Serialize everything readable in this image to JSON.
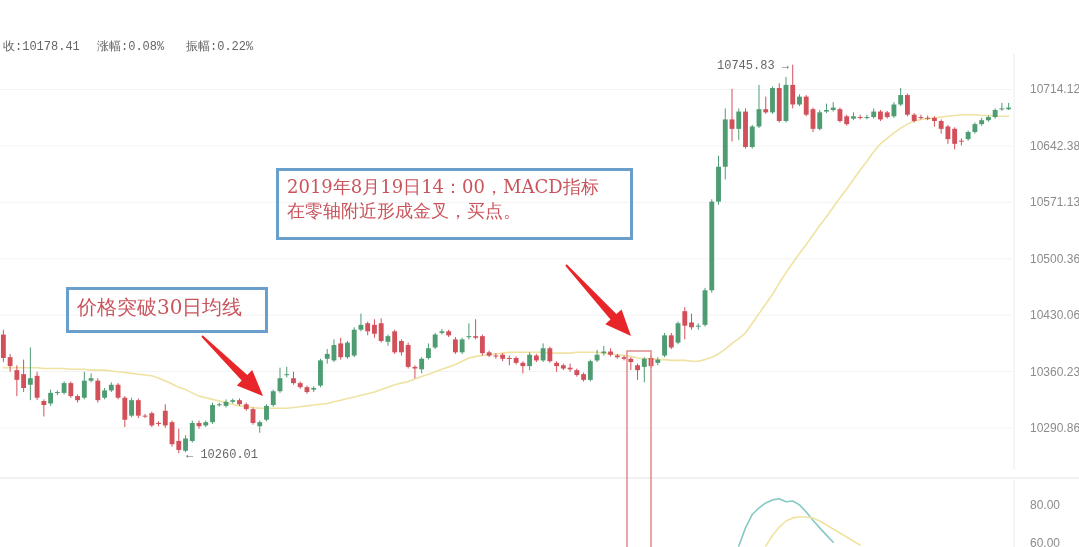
{
  "chart_data": [
    {
      "type": "candlestick",
      "log": true,
      "grid": "y",
      "ylim": [
        10240,
        10760
      ],
      "yticks": [
        10290.86,
        10360.23,
        10430.06,
        10500.36,
        10571.13,
        10642.38,
        10714.12
      ],
      "annotations": [
        "收:10178.41",
        "涨幅:0.08%",
        "振幅:0.22%",
        "价格突破30日均线",
        "2019年8月19日14：00，MACD指标在零轴附近形成金叉，买点。",
        "10745.83 →",
        "← 10260.01"
      ],
      "categories": [
        null,
        null,
        null,
        null,
        null,
        null,
        null,
        null,
        null,
        null,
        null,
        null,
        null,
        null,
        null,
        null,
        null,
        null,
        null,
        null,
        null,
        null,
        null,
        null,
        null,
        null,
        null,
        null,
        null,
        null,
        null,
        null,
        null,
        null,
        null,
        null,
        null,
        null,
        null,
        null,
        null,
        null,
        null,
        null,
        null,
        null,
        null,
        null,
        null,
        null,
        null,
        null,
        null,
        null,
        null,
        null,
        null,
        null,
        null,
        null,
        null,
        null,
        null,
        null,
        null,
        null,
        null,
        null,
        null,
        null,
        null,
        null,
        null,
        null,
        null,
        null,
        null,
        null,
        null,
        null,
        null,
        null,
        null,
        null,
        null,
        null,
        null,
        null,
        null,
        null,
        null,
        null,
        null,
        null,
        null,
        null,
        null,
        null,
        null,
        null,
        null,
        null,
        null,
        null,
        null,
        null,
        null,
        null,
        null,
        null,
        null,
        null,
        null,
        null,
        null,
        null,
        null,
        null,
        null,
        null,
        null,
        null,
        null,
        null,
        null,
        null,
        null,
        null,
        null,
        null,
        null,
        null,
        null,
        null,
        null,
        null,
        null,
        null,
        null,
        null,
        null,
        null,
        null,
        null,
        null,
        null,
        null,
        null,
        null,
        null
      ],
      "ohlc": [
        [
          10406,
          10412,
          10372,
          10377
        ],
        [
          10378,
          10382,
          10360,
          10367
        ],
        [
          10362,
          10368,
          10330,
          10350
        ],
        [
          10357,
          10375,
          10335,
          10340
        ],
        [
          10344,
          10390,
          10325,
          10352
        ],
        [
          10355,
          10360,
          10325,
          10328
        ],
        [
          10324,
          10326,
          10305,
          10319
        ],
        [
          10321,
          10338,
          10318,
          10334
        ],
        [
          10334,
          10337,
          10331,
          10335
        ],
        [
          10334,
          10348,
          10332,
          10346
        ],
        [
          10346,
          10348,
          10328,
          10330
        ],
        [
          10330,
          10332,
          10322,
          10325
        ],
        [
          10328,
          10360,
          10326,
          10349
        ],
        [
          10349,
          10358,
          10347,
          10352
        ],
        [
          10349,
          10352,
          10322,
          10325
        ],
        [
          10328,
          10340,
          10326,
          10337
        ],
        [
          10337,
          10347,
          10335,
          10344
        ],
        [
          10344,
          10346,
          10326,
          10328
        ],
        [
          10328,
          10330,
          10292,
          10301
        ],
        [
          10306,
          10328,
          10304,
          10325
        ],
        [
          10325,
          10327,
          10303,
          10306
        ],
        [
          10306,
          10308,
          10303,
          10305
        ],
        [
          10309,
          10311,
          10292,
          10294
        ],
        [
          10297,
          10299,
          10293,
          10296
        ],
        [
          10312,
          10320,
          10291,
          10294
        ],
        [
          10298,
          10300,
          10268,
          10271
        ],
        [
          10275,
          10290,
          10260.01,
          10264
        ],
        [
          10263,
          10282,
          10261,
          10278
        ],
        [
          10275,
          10300,
          10273,
          10297
        ],
        [
          10297,
          10300,
          10290,
          10293
        ],
        [
          10294,
          10300,
          10292,
          10298
        ],
        [
          10298,
          10322,
          10296,
          10319
        ],
        [
          10319,
          10322,
          10317,
          10320
        ],
        [
          10318,
          10326,
          10316,
          10323
        ],
        [
          10323,
          10327,
          10321,
          10325
        ],
        [
          10325,
          10327,
          10318,
          10320
        ],
        [
          10320,
          10322,
          10312,
          10314
        ],
        [
          10314,
          10316,
          10295,
          10297
        ],
        [
          10293,
          10300,
          10285,
          10298
        ],
        [
          10301,
          10320,
          10299,
          10318
        ],
        [
          10319,
          10338,
          10317,
          10336
        ],
        [
          10336,
          10365,
          10334,
          10352
        ],
        [
          10356,
          10366,
          10353,
          10357
        ],
        [
          10352,
          10360,
          10344,
          10346
        ],
        [
          10346,
          10348,
          10339,
          10341
        ],
        [
          10341,
          10343,
          10333,
          10335
        ],
        [
          10338,
          10342,
          10335,
          10340
        ],
        [
          10343,
          10376,
          10341,
          10374
        ],
        [
          10376,
          10388,
          10370,
          10382
        ],
        [
          10374,
          10400,
          10372,
          10393
        ],
        [
          10395,
          10402,
          10375,
          10378
        ],
        [
          10378,
          10398,
          10376,
          10396
        ],
        [
          10380,
          10415,
          10378,
          10412
        ],
        [
          10412,
          10432,
          10410,
          10418
        ],
        [
          10420,
          10422,
          10405,
          10410
        ],
        [
          10418,
          10425,
          10402,
          10407
        ],
        [
          10420,
          10426,
          10396,
          10398
        ],
        [
          10397,
          10406,
          10392,
          10404
        ],
        [
          10410,
          10412,
          10382,
          10384
        ],
        [
          10398,
          10400,
          10380,
          10384
        ],
        [
          10393,
          10396,
          10364,
          10366
        ],
        [
          10366,
          10368,
          10352,
          10364
        ],
        [
          10363,
          10378,
          10358,
          10376
        ],
        [
          10377,
          10395,
          10375,
          10389
        ],
        [
          10390,
          10408,
          10388,
          10406
        ],
        [
          10408,
          10413,
          10406,
          10410
        ],
        [
          10410,
          10412,
          10403,
          10405
        ],
        [
          10400,
          10403,
          10382,
          10384
        ],
        [
          10384,
          10402,
          10382,
          10400
        ],
        [
          10403,
          10420,
          10400,
          10404
        ],
        [
          10404,
          10425,
          10400,
          10402
        ],
        [
          10404,
          10406,
          10380,
          10383
        ],
        [
          10384,
          10386,
          10378,
          10380
        ],
        [
          10380,
          10383,
          10376,
          10379
        ],
        [
          10381,
          10383,
          10373,
          10376
        ],
        [
          10377,
          10380,
          10368,
          10376
        ],
        [
          10377,
          10379,
          10369,
          10371
        ],
        [
          10371,
          10373,
          10358,
          10367
        ],
        [
          10367,
          10384,
          10362,
          10381
        ],
        [
          10380,
          10382,
          10372,
          10374
        ],
        [
          10374,
          10395,
          10372,
          10389
        ],
        [
          10389,
          10391,
          10371,
          10373
        ],
        [
          10371,
          10373,
          10360,
          10367
        ],
        [
          10368,
          10370,
          10362,
          10364
        ],
        [
          10365,
          10370,
          10360,
          10363
        ],
        [
          10362,
          10364,
          10354,
          10356
        ],
        [
          10357,
          10359,
          10348,
          10350
        ],
        [
          10350,
          10375,
          10348,
          10373
        ],
        [
          10374,
          10387,
          10372,
          10381
        ],
        [
          10383,
          10392,
          10380,
          10385
        ],
        [
          10385,
          10389,
          10379,
          10381
        ],
        [
          10380,
          10382,
          10376,
          10378
        ],
        [
          10378,
          10380,
          10374,
          10376
        ],
        [
          10376,
          10378,
          10362,
          10372
        ],
        [
          10368,
          10370,
          10350,
          10362
        ],
        [
          10366,
          10378,
          10347,
          10376
        ],
        [
          10377,
          10380,
          10365,
          10367
        ],
        [
          10371,
          10378,
          10368,
          10375
        ],
        [
          10380,
          10408,
          10378,
          10405
        ],
        [
          10405,
          10408,
          10388,
          10390
        ],
        [
          10396,
          10422,
          10394,
          10420
        ],
        [
          10435,
          10440,
          10400,
          10417
        ],
        [
          10421,
          10432,
          10412,
          10415
        ],
        [
          10416,
          10420,
          10412,
          10417
        ],
        [
          10418,
          10464,
          10416,
          10461
        ],
        [
          10461,
          10575,
          10458,
          10572
        ],
        [
          10572,
          10630,
          10568,
          10616
        ],
        [
          10616,
          10690,
          10600,
          10676
        ],
        [
          10676,
          10715,
          10648,
          10664
        ],
        [
          10664,
          10690,
          10650,
          10686
        ],
        [
          10686,
          10690,
          10639,
          10641
        ],
        [
          10641,
          10669,
          10639,
          10667
        ],
        [
          10667,
          10720,
          10665,
          10689
        ],
        [
          10689,
          10705,
          10683,
          10685
        ],
        [
          10685,
          10718,
          10683,
          10716
        ],
        [
          10716,
          10722,
          10672,
          10674
        ],
        [
          10674,
          10730,
          10672,
          10720
        ],
        [
          10720,
          10745.83,
          10690,
          10695
        ],
        [
          10695,
          10708,
          10693,
          10705
        ],
        [
          10705,
          10707,
          10680,
          10682
        ],
        [
          10689,
          10691,
          10660,
          10664
        ],
        [
          10664,
          10688,
          10662,
          10685
        ],
        [
          10686,
          10696,
          10684,
          10688
        ],
        [
          10688,
          10698,
          10686,
          10691
        ],
        [
          10689,
          10691,
          10672,
          10674
        ],
        [
          10680,
          10682,
          10668,
          10670
        ],
        [
          10677,
          10685,
          10675,
          10680
        ],
        [
          10679,
          10682,
          10676,
          10678
        ],
        [
          10678,
          10682,
          10676,
          10679
        ],
        [
          10679,
          10690,
          10677,
          10686
        ],
        [
          10686,
          10688,
          10674,
          10676
        ],
        [
          10685,
          10687,
          10677,
          10679
        ],
        [
          10680,
          10698,
          10678,
          10695
        ],
        [
          10695,
          10716,
          10693,
          10707
        ],
        [
          10707,
          10709,
          10680,
          10682
        ],
        [
          10682,
          10684,
          10672,
          10674
        ],
        [
          10679,
          10682,
          10676,
          10678
        ],
        [
          10678,
          10681,
          10675,
          10677
        ],
        [
          10678,
          10680,
          10667,
          10674
        ],
        [
          10674,
          10676,
          10658,
          10664
        ],
        [
          10667,
          10669,
          10645,
          10651
        ],
        [
          10664,
          10666,
          10638,
          10645
        ],
        [
          10649,
          10652,
          10643,
          10648
        ],
        [
          10651,
          10662,
          10649,
          10660
        ],
        [
          10660,
          10672,
          10658,
          10670
        ],
        [
          10670,
          10678,
          10668,
          10675
        ],
        [
          10675,
          10681,
          10673,
          10679
        ],
        [
          10679,
          10690,
          10677,
          10688
        ],
        [
          10689,
          10697,
          10687,
          10690
        ],
        [
          10689,
          10697,
          10688,
          10691
        ]
      ],
      "series": [
        {
          "type": "line",
          "color": "#efe2a2",
          "values": [
            10365,
            10365,
            10365,
            10365,
            10365,
            10365,
            10364,
            10364,
            10364,
            10364,
            10363,
            10363,
            10363,
            10362,
            10362,
            10362,
            10361,
            10360,
            10359,
            10358,
            10357,
            10356,
            10355,
            10352,
            10349,
            10345,
            10341,
            10338,
            10334,
            10330,
            10328,
            10326,
            10324,
            10322,
            10320,
            10318,
            10317,
            10316,
            10315,
            10315,
            10315,
            10315,
            10315,
            10316,
            10317,
            10318,
            10319,
            10320,
            10321,
            10323,
            10325,
            10327,
            10329,
            10331,
            10333,
            10335,
            10338,
            10341,
            10344,
            10346,
            10348,
            10351,
            10354,
            10357,
            10360,
            10363,
            10366,
            10369,
            10373,
            10377,
            10379,
            10380,
            10381,
            10382,
            10383,
            10384,
            10384,
            10384,
            10384,
            10384,
            10384,
            10383,
            10383,
            10383,
            10383,
            10384,
            10384,
            10384,
            10384,
            10383,
            10382,
            10381,
            10380,
            10379,
            10377,
            10376,
            10376,
            10375,
            10375,
            10374,
            10374,
            10374,
            10373,
            10373,
            10375,
            10378,
            10382,
            10388,
            10395,
            10401,
            10408,
            10420,
            10432,
            10444,
            10456,
            10470,
            10483,
            10495,
            10507,
            10518,
            10530,
            10542,
            10553,
            10565,
            10577,
            10588,
            10600,
            10612,
            10623,
            10635,
            10645,
            10652,
            10659,
            10665,
            10670,
            10674,
            10676,
            10677,
            10678,
            10679,
            10680,
            10681,
            10682,
            10682,
            10682,
            10681,
            10681,
            10680,
            10680,
            10680
          ]
        }
      ]
    },
    {
      "type": "line",
      "ylim": [
        58,
        93
      ],
      "yticks": [
        {
          "value": 60,
          "label": "60.00"
        },
        {
          "value": 80,
          "label": "80.00"
        }
      ],
      "categories": [
        null,
        null,
        null,
        null,
        null,
        null,
        null,
        null,
        null,
        null,
        null,
        null,
        null,
        null,
        null,
        null,
        null,
        null,
        null,
        null,
        null,
        null,
        null,
        null,
        null,
        null,
        null,
        null,
        null,
        null,
        null,
        null,
        null,
        null,
        null,
        null,
        null,
        null,
        null,
        null,
        null,
        null,
        null,
        null,
        null,
        null,
        null,
        null,
        null,
        null,
        null,
        null,
        null,
        null,
        null,
        null,
        null,
        null,
        null,
        null,
        null,
        null,
        null,
        null,
        null,
        null,
        null,
        null,
        null,
        null,
        null,
        null,
        null,
        null,
        null,
        null,
        null,
        null,
        null,
        null,
        null,
        null,
        null,
        null,
        null,
        null,
        null,
        null,
        null,
        null,
        null,
        null,
        null,
        null,
        null,
        null,
        null,
        null,
        null,
        null,
        null,
        null,
        null,
        null,
        null,
        null,
        null,
        null,
        null,
        null,
        null,
        null,
        null,
        null,
        null,
        null,
        null,
        null,
        null,
        null,
        null,
        null,
        null,
        null,
        null,
        null,
        null,
        null,
        null,
        null,
        null,
        null,
        null,
        null,
        null,
        null,
        null,
        null,
        null,
        null,
        null,
        null,
        null,
        null,
        null,
        null,
        null,
        null,
        null,
        null
      ],
      "series": [
        {
          "color": "#86c8c4",
          "values": [
            null,
            null,
            null,
            null,
            null,
            null,
            null,
            null,
            null,
            null,
            null,
            null,
            null,
            null,
            null,
            null,
            null,
            null,
            null,
            null,
            null,
            null,
            null,
            null,
            null,
            null,
            null,
            null,
            null,
            null,
            null,
            null,
            null,
            null,
            null,
            null,
            null,
            null,
            null,
            null,
            null,
            null,
            null,
            null,
            null,
            null,
            null,
            null,
            null,
            null,
            null,
            null,
            null,
            null,
            null,
            null,
            null,
            null,
            null,
            null,
            null,
            null,
            null,
            null,
            null,
            null,
            null,
            null,
            null,
            null,
            null,
            null,
            null,
            null,
            null,
            null,
            null,
            null,
            null,
            null,
            null,
            null,
            null,
            null,
            null,
            null,
            null,
            null,
            null,
            null,
            null,
            null,
            null,
            null,
            null,
            null,
            null,
            null,
            null,
            null,
            null,
            null,
            null,
            null,
            null,
            null,
            null,
            null,
            null,
            58.5,
            68,
            75,
            78.4,
            81,
            82.6,
            83.2,
            81.6,
            82,
            80,
            76.3,
            72,
            68,
            64.2,
            60.5,
            null,
            null,
            null,
            null,
            null,
            null,
            null,
            null,
            null,
            null,
            null,
            null,
            null,
            null,
            null,
            null,
            null,
            null,
            null,
            null,
            null,
            null,
            null,
            null,
            null,
            null
          ]
        },
        {
          "color": "#f0e3a0",
          "values": [
            null,
            null,
            null,
            null,
            null,
            null,
            null,
            null,
            null,
            null,
            null,
            null,
            null,
            null,
            null,
            null,
            null,
            null,
            null,
            null,
            null,
            null,
            null,
            null,
            null,
            null,
            null,
            null,
            null,
            null,
            null,
            null,
            null,
            null,
            null,
            null,
            null,
            null,
            null,
            null,
            null,
            null,
            null,
            null,
            null,
            null,
            null,
            null,
            null,
            null,
            null,
            null,
            null,
            null,
            null,
            null,
            null,
            null,
            null,
            null,
            null,
            null,
            null,
            null,
            null,
            null,
            null,
            null,
            null,
            null,
            null,
            null,
            null,
            null,
            null,
            null,
            null,
            null,
            null,
            null,
            null,
            null,
            null,
            null,
            null,
            null,
            null,
            null,
            null,
            null,
            null,
            null,
            null,
            null,
            null,
            null,
            null,
            null,
            null,
            null,
            null,
            null,
            null,
            null,
            null,
            null,
            null,
            null,
            null,
            null,
            null,
            null,
            null,
            58.5,
            64,
            68.4,
            71.6,
            73.2,
            73.7,
            73.7,
            73.2,
            71.6,
            69.5,
            67.4,
            65.3,
            63.2,
            61,
            59,
            null,
            null,
            null,
            null,
            null,
            null,
            null,
            null,
            null,
            null,
            null,
            null,
            null,
            null,
            null,
            null,
            null,
            null,
            null,
            null,
            null,
            null
          ]
        }
      ]
    }
  ]
}
